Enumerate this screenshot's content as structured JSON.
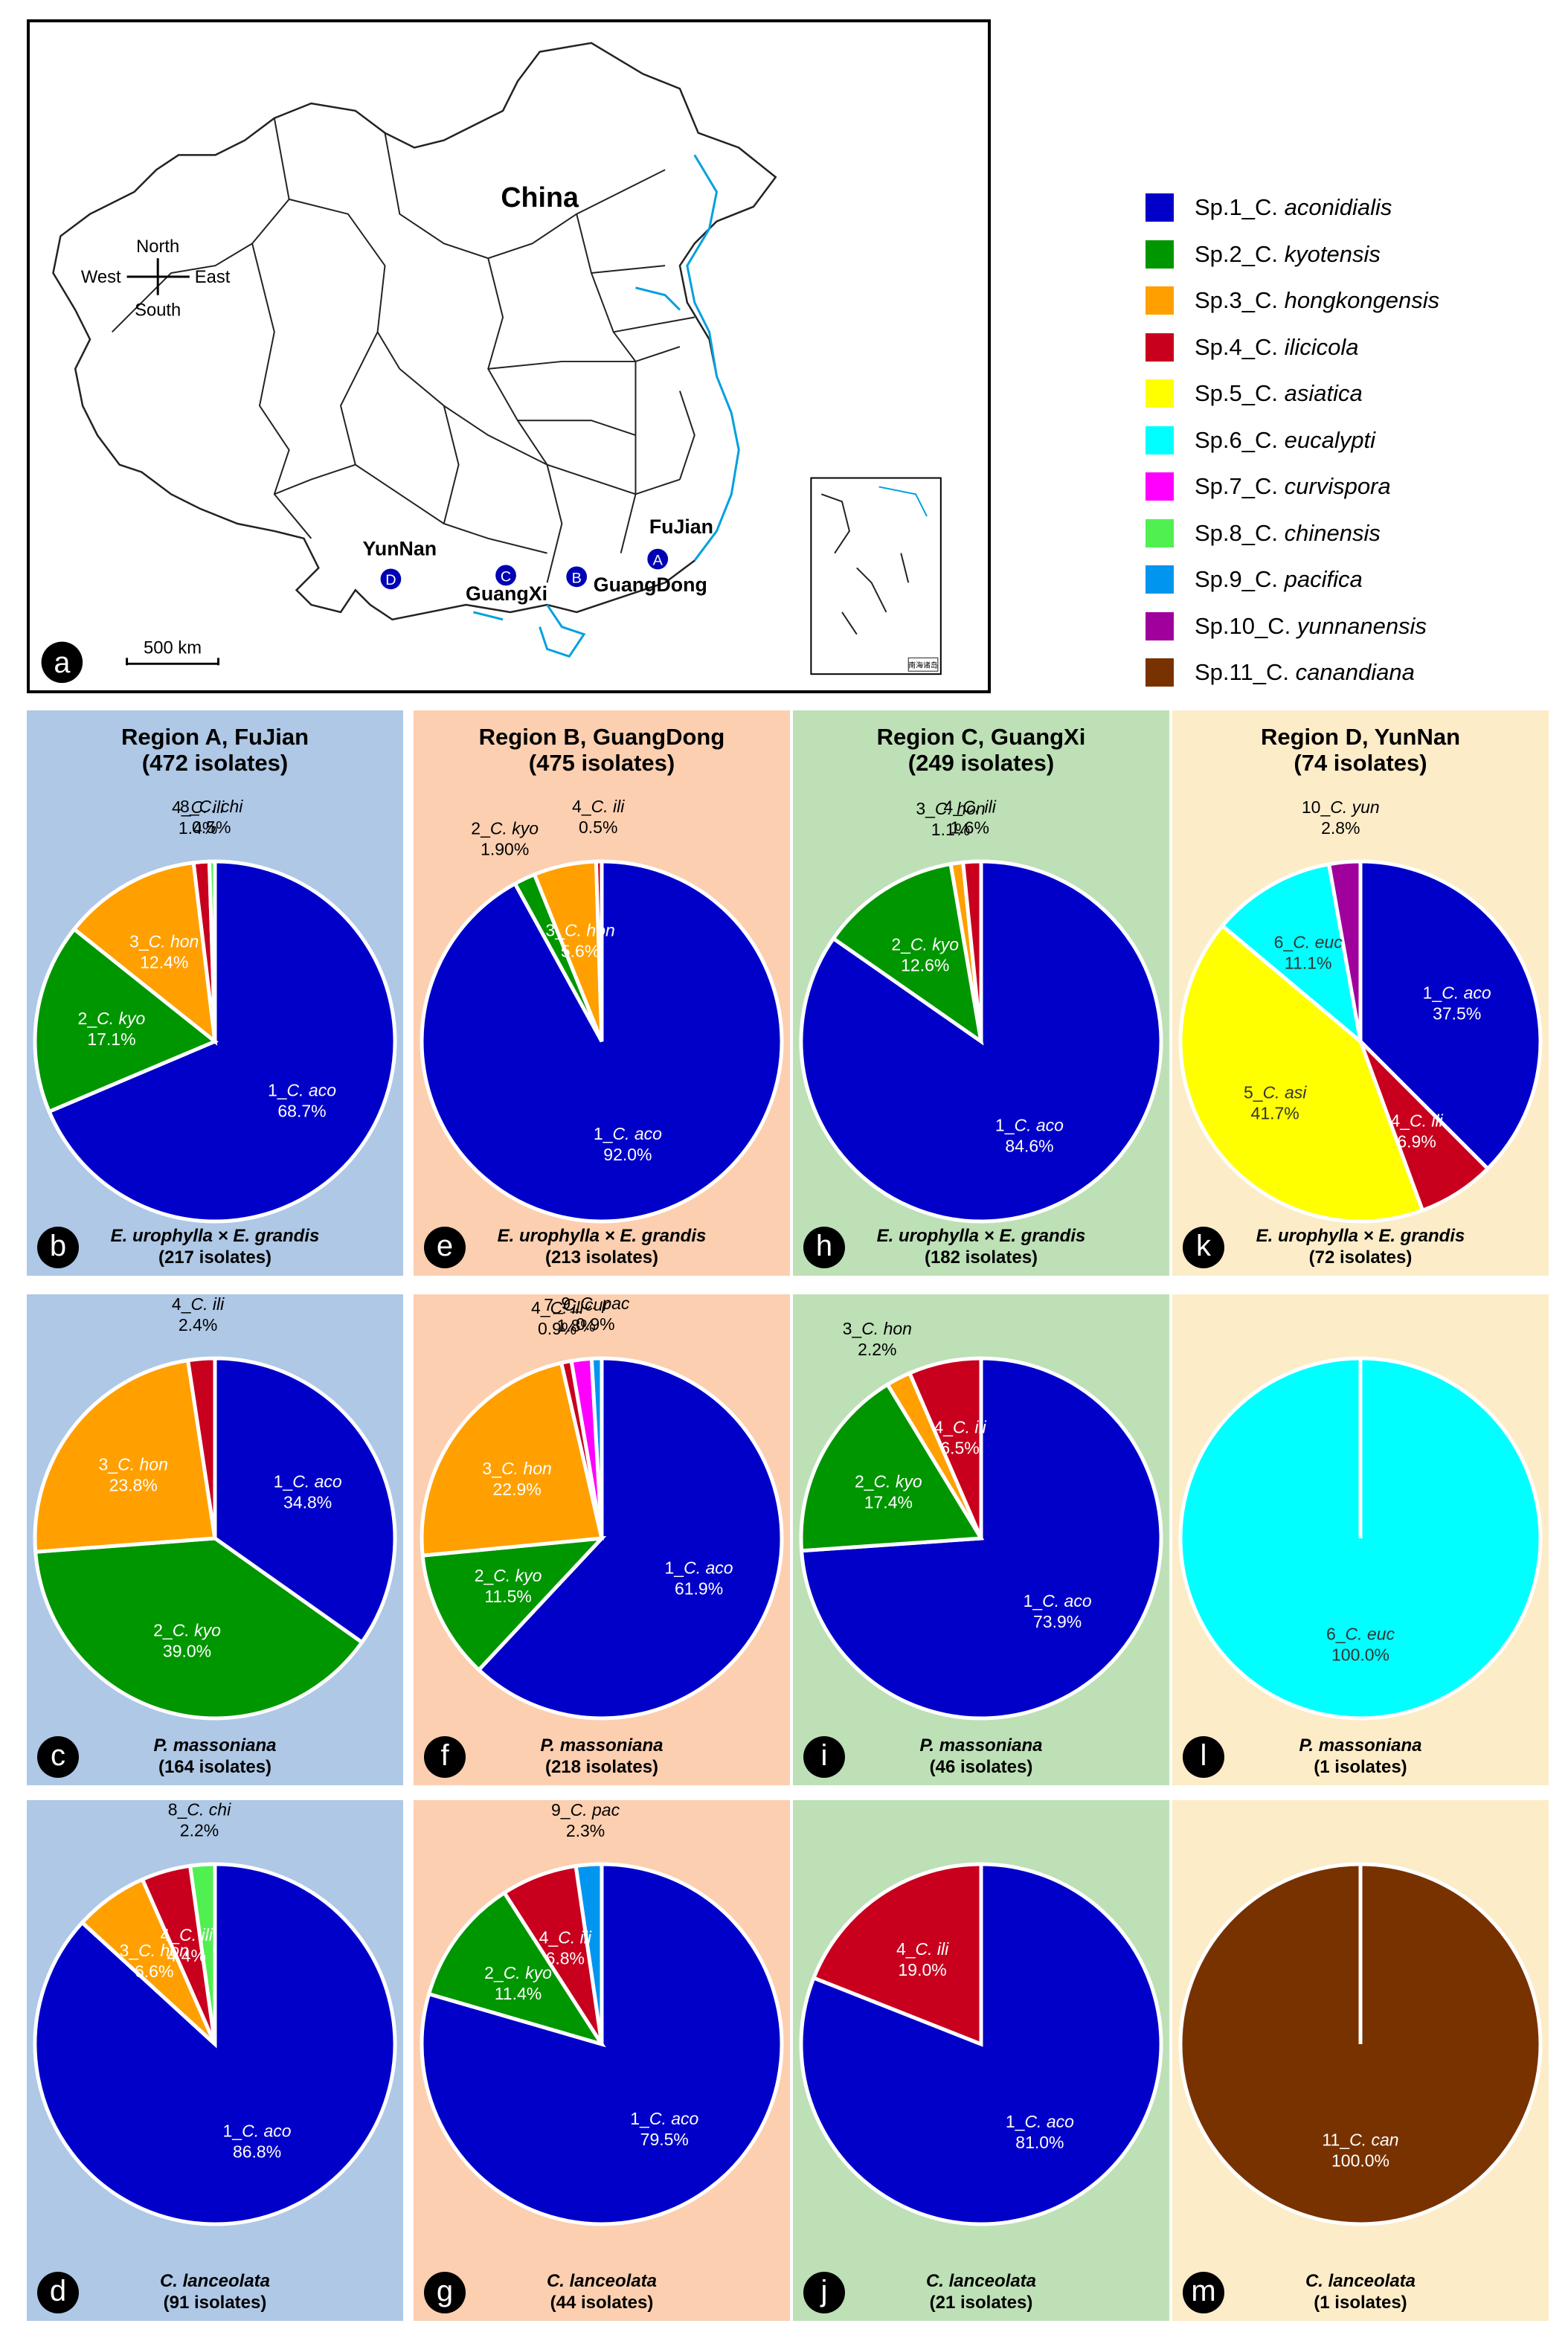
{
  "map": {
    "panel_letter": "a",
    "country_label": "China",
    "compass": {
      "north": "North",
      "south": "South",
      "east": "East",
      "west": "West"
    },
    "scale_label": "500 km",
    "inset_label": "南海诸岛",
    "provinces": [
      {
        "name": "YunNan",
        "marker": "D"
      },
      {
        "name": "GuangXi",
        "marker": "C"
      },
      {
        "name": "GuangDong",
        "marker": "B"
      },
      {
        "name": "FuJian",
        "marker": "A"
      }
    ],
    "colors": {
      "marker": "#0000b4",
      "coast": "#00a0e0",
      "border": "#222222"
    }
  },
  "legend": {
    "items": [
      {
        "prefix": "Sp.1_",
        "genus": "C.",
        "species": "aconidialis",
        "color": "#0000c8"
      },
      {
        "prefix": "Sp.2_",
        "genus": "C.",
        "species": "kyotensis",
        "color": "#009600"
      },
      {
        "prefix": "Sp.3_",
        "genus": "C.",
        "species": "hongkongensis",
        "color": "#ffa000"
      },
      {
        "prefix": "Sp.4_",
        "genus": "C.",
        "species": "ilicicola",
        "color": "#c8001e"
      },
      {
        "prefix": "Sp.5_",
        "genus": "C.",
        "species": "asiatica",
        "color": "#ffff00"
      },
      {
        "prefix": "Sp.6_",
        "genus": "C.",
        "species": "eucalypti",
        "color": "#00ffff"
      },
      {
        "prefix": "Sp.7_",
        "genus": "C.",
        "species": "curvispora",
        "color": "#ff00ff"
      },
      {
        "prefix": "Sp.8_",
        "genus": "C.",
        "species": "chinensis",
        "color": "#50f050"
      },
      {
        "prefix": "Sp.9_",
        "genus": "C.",
        "species": "pacifica",
        "color": "#0096f0"
      },
      {
        "prefix": "Sp.10_",
        "genus": "C.",
        "species": "yunnanensis",
        "color": "#a0009b"
      },
      {
        "prefix": "Sp.11_",
        "genus": "C.",
        "species": "canandiana",
        "color": "#783200"
      }
    ]
  },
  "regions": [
    {
      "title": "Region A, FuJian",
      "count": "(472 isolates)",
      "bg": "#aec8e6"
    },
    {
      "title": "Region B, GuangDong",
      "count": "(475 isolates)",
      "bg": "#fccfb0"
    },
    {
      "title": "Region C, GuangXi",
      "count": "(249 isolates)",
      "bg": "#bde0b6"
    },
    {
      "title": "Region D, YunNan",
      "count": "(74 isolates)",
      "bg": "#fdecc8"
    }
  ],
  "chart_data": [
    {
      "type": "pie",
      "panel": "b",
      "region": "Region A, FuJian",
      "host": "E. urophylla × E. grandis",
      "isolates": "(217 isolates)",
      "slices": [
        {
          "sp": 1,
          "name": "1_C. aco",
          "value": 68.7,
          "label": "68.7%"
        },
        {
          "sp": 2,
          "name": "2_C. kyo",
          "value": 17.1,
          "label": "17.1%"
        },
        {
          "sp": 3,
          "name": "3_C. hon",
          "value": 12.4,
          "label": "12.4%"
        },
        {
          "sp": 4,
          "name": "4_C. ili",
          "value": 1.4,
          "label": "1.4%"
        },
        {
          "sp": 8,
          "name": "8_C. chi",
          "value": 0.5,
          "label": "0.5%"
        }
      ]
    },
    {
      "type": "pie",
      "panel": "e",
      "region": "Region B, GuangDong",
      "host": "E. urophylla × E. grandis",
      "isolates": "(213 isolates)",
      "slices": [
        {
          "sp": 1,
          "name": "1_C. aco",
          "value": 92.0,
          "label": "92.0%"
        },
        {
          "sp": 2,
          "name": "2_C. kyo",
          "value": 1.9,
          "label": "1.90%"
        },
        {
          "sp": 3,
          "name": "3_C. hon",
          "value": 5.6,
          "label": "5.6%"
        },
        {
          "sp": 4,
          "name": "4_C. ili",
          "value": 0.5,
          "label": "0.5%"
        }
      ]
    },
    {
      "type": "pie",
      "panel": "h",
      "region": "Region C, GuangXi",
      "host": "E. urophylla × E. grandis",
      "isolates": "(182 isolates)",
      "slices": [
        {
          "sp": 1,
          "name": "1_C. aco",
          "value": 84.6,
          "label": "84.6%"
        },
        {
          "sp": 2,
          "name": "2_C. kyo",
          "value": 12.6,
          "label": "12.6%"
        },
        {
          "sp": 3,
          "name": "3_C. hon",
          "value": 1.1,
          "label": "1.1%"
        },
        {
          "sp": 4,
          "name": "4_C. ili",
          "value": 1.6,
          "label": "1.6%"
        }
      ]
    },
    {
      "type": "pie",
      "panel": "k",
      "region": "Region D, YunNan",
      "host": "E. urophylla × E. grandis",
      "isolates": "(72 isolates)",
      "slices": [
        {
          "sp": 1,
          "name": "1_C. aco",
          "value": 37.5,
          "label": "37.5%"
        },
        {
          "sp": 4,
          "name": "4_C. ili",
          "value": 6.9,
          "label": "6.9%"
        },
        {
          "sp": 5,
          "name": "5_C. asi",
          "value": 41.7,
          "label": "41.7%"
        },
        {
          "sp": 6,
          "name": "6_C. euc",
          "value": 11.1,
          "label": "11.1%"
        },
        {
          "sp": 10,
          "name": "10_C. yun",
          "value": 2.8,
          "label": "2.8%"
        }
      ]
    },
    {
      "type": "pie",
      "panel": "c",
      "region": "Region A, FuJian",
      "host": "P. massoniana",
      "isolates": "(164 isolates)",
      "slices": [
        {
          "sp": 1,
          "name": "1_C. aco",
          "value": 34.8,
          "label": "34.8%"
        },
        {
          "sp": 2,
          "name": "2_C. kyo",
          "value": 39.0,
          "label": "39.0%"
        },
        {
          "sp": 3,
          "name": "3_C. hon",
          "value": 23.8,
          "label": "23.8%"
        },
        {
          "sp": 4,
          "name": "4_C. ili",
          "value": 2.4,
          "label": "2.4%"
        }
      ]
    },
    {
      "type": "pie",
      "panel": "f",
      "region": "Region B, GuangDong",
      "host": "P. massoniana",
      "isolates": "(218 isolates)",
      "slices": [
        {
          "sp": 1,
          "name": "1_C. aco",
          "value": 61.9,
          "label": "61.9%"
        },
        {
          "sp": 2,
          "name": "2_C. kyo",
          "value": 11.5,
          "label": "11.5%"
        },
        {
          "sp": 3,
          "name": "3_C. hon",
          "value": 22.9,
          "label": "22.9%"
        },
        {
          "sp": 4,
          "name": "4_C. ili",
          "value": 0.9,
          "label": "0.9%"
        },
        {
          "sp": 7,
          "name": "7_C. cur",
          "value": 1.8,
          "label": "1.8%"
        },
        {
          "sp": 9,
          "name": "9_C. pac",
          "value": 0.9,
          "label": "0.9%"
        }
      ]
    },
    {
      "type": "pie",
      "panel": "i",
      "region": "Region C, GuangXi",
      "host": "P. massoniana",
      "isolates": "(46 isolates)",
      "slices": [
        {
          "sp": 1,
          "name": "1_C. aco",
          "value": 73.9,
          "label": "73.9%"
        },
        {
          "sp": 2,
          "name": "2_C. kyo",
          "value": 17.4,
          "label": "17.4%"
        },
        {
          "sp": 3,
          "name": "3_C. hon",
          "value": 2.2,
          "label": "2.2%"
        },
        {
          "sp": 4,
          "name": "4_C. ili",
          "value": 6.5,
          "label": "6.5%"
        }
      ]
    },
    {
      "type": "pie",
      "panel": "l",
      "region": "Region D, YunNan",
      "host": "P. massoniana",
      "isolates": "(1 isolates)",
      "slices": [
        {
          "sp": 6,
          "name": "6_C. euc",
          "value": 100.0,
          "label": "100.0%"
        }
      ]
    },
    {
      "type": "pie",
      "panel": "d",
      "region": "Region A, FuJian",
      "host": "C. lanceolata",
      "isolates": "(91 isolates)",
      "slices": [
        {
          "sp": 1,
          "name": "1_C. aco",
          "value": 86.8,
          "label": "86.8%"
        },
        {
          "sp": 3,
          "name": "3_C. hon",
          "value": 6.6,
          "label": "6.6%"
        },
        {
          "sp": 4,
          "name": "4_C. ili",
          "value": 4.4,
          "label": "4.4%"
        },
        {
          "sp": 8,
          "name": "8_C. chi",
          "value": 2.2,
          "label": "2.2%"
        }
      ]
    },
    {
      "type": "pie",
      "panel": "g",
      "region": "Region B, GuangDong",
      "host": "C. lanceolata",
      "isolates": "(44 isolates)",
      "slices": [
        {
          "sp": 1,
          "name": "1_C. aco",
          "value": 79.5,
          "label": "79.5%"
        },
        {
          "sp": 2,
          "name": "2_C. kyo",
          "value": 11.4,
          "label": "11.4%"
        },
        {
          "sp": 4,
          "name": "4_C. ili",
          "value": 6.8,
          "label": "6.8%"
        },
        {
          "sp": 9,
          "name": "9_C. pac",
          "value": 2.3,
          "label": "2.3%"
        }
      ]
    },
    {
      "type": "pie",
      "panel": "j",
      "region": "Region C, GuangXi",
      "host": "C. lanceolata",
      "isolates": "(21 isolates)",
      "slices": [
        {
          "sp": 1,
          "name": "1_C. aco",
          "value": 81.0,
          "label": "81.0%"
        },
        {
          "sp": 4,
          "name": "4_C. ili",
          "value": 19.0,
          "label": "19.0%"
        }
      ]
    },
    {
      "type": "pie",
      "panel": "m",
      "region": "Region D, YunNan",
      "host": "C. lanceolata",
      "isolates": "(1 isolates)",
      "slices": [
        {
          "sp": 11,
          "name": "11_C. can",
          "value": 100.0,
          "label": "100.0%"
        }
      ]
    }
  ]
}
